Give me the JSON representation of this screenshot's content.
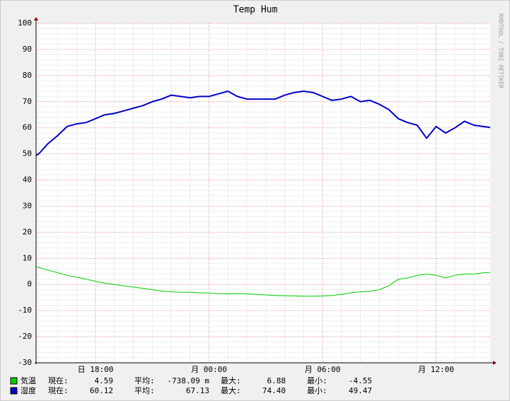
{
  "chart_data": {
    "type": "line",
    "title": "Temp Hum",
    "watermark": "RRDTOOL / TOBI OETIKER",
    "x": [
      14.86,
      15,
      15.5,
      16,
      16.5,
      17,
      17.5,
      18,
      18.5,
      19,
      19.5,
      20,
      20.5,
      21,
      21.5,
      22,
      22.5,
      23,
      23.5,
      24,
      24.5,
      25,
      25.5,
      26,
      26.5,
      27,
      27.5,
      28,
      28.5,
      29,
      29.5,
      30,
      30.5,
      31,
      31.5,
      32,
      32.5,
      33,
      33.5,
      34,
      34.5,
      35,
      35.5,
      36,
      36.5,
      37,
      37.5,
      38,
      38.5,
      38.86
    ],
    "xlim": [
      14.86,
      38.86
    ],
    "xticks": [
      {
        "value": 18,
        "label": "日 18:00"
      },
      {
        "value": 24,
        "label": "月 00:00"
      },
      {
        "value": 30,
        "label": "月 06:00"
      },
      {
        "value": 36,
        "label": "月 12:00"
      }
    ],
    "ylim": [
      -30,
      100
    ],
    "yticks": [
      -30,
      -20,
      -10,
      0,
      10,
      20,
      30,
      40,
      50,
      60,
      70,
      80,
      90,
      100
    ],
    "grid": true,
    "series": [
      {
        "name": "気温",
        "color": "#00cc00",
        "values": [
          6.88,
          6.5,
          5.5,
          4.5,
          3.5,
          2.8,
          2,
          1.2,
          0.5,
          0,
          -0.5,
          -1,
          -1.5,
          -2,
          -2.5,
          -2.8,
          -3,
          -3,
          -3.2,
          -3.3,
          -3.5,
          -3.6,
          -3.5,
          -3.6,
          -3.8,
          -4,
          -4.2,
          -4.3,
          -4.4,
          -4.5,
          -4.5,
          -4.4,
          -4.2,
          -3.8,
          -3.2,
          -2.8,
          -2.6,
          -2,
          -0.5,
          2,
          2.5,
          3.5,
          4,
          3.5,
          2.5,
          3.5,
          4,
          4,
          4.5,
          4.59
        ],
        "stats": [
          {
            "label": "現在:",
            "value": "4.59"
          },
          {
            "label": "平均:",
            "value": "-738.09 m"
          },
          {
            "label": "最大:",
            "value": "6.88"
          },
          {
            "label": "最小:",
            "value": "-4.55"
          }
        ]
      },
      {
        "name": "湿度",
        "color": "#0000cc",
        "values": [
          49.47,
          50,
          54,
          57,
          60.5,
          61.5,
          62,
          63.5,
          65,
          65.5,
          66.5,
          67.5,
          68.5,
          70,
          71,
          72.5,
          72,
          71.5,
          72,
          72,
          73,
          74,
          72,
          71,
          71,
          71,
          71,
          72.5,
          73.5,
          74,
          73.5,
          72,
          70.5,
          71,
          72,
          70,
          70.5,
          69,
          67,
          63.5,
          62,
          61,
          56,
          60.5,
          58,
          60,
          62.5,
          61,
          60.5,
          60.12
        ],
        "stats": [
          {
            "label": "現在:",
            "value": "60.12"
          },
          {
            "label": "平均:",
            "value": "67.13"
          },
          {
            "label": "最大:",
            "value": "74.40"
          },
          {
            "label": "最小:",
            "value": "49.47"
          }
        ]
      }
    ]
  }
}
